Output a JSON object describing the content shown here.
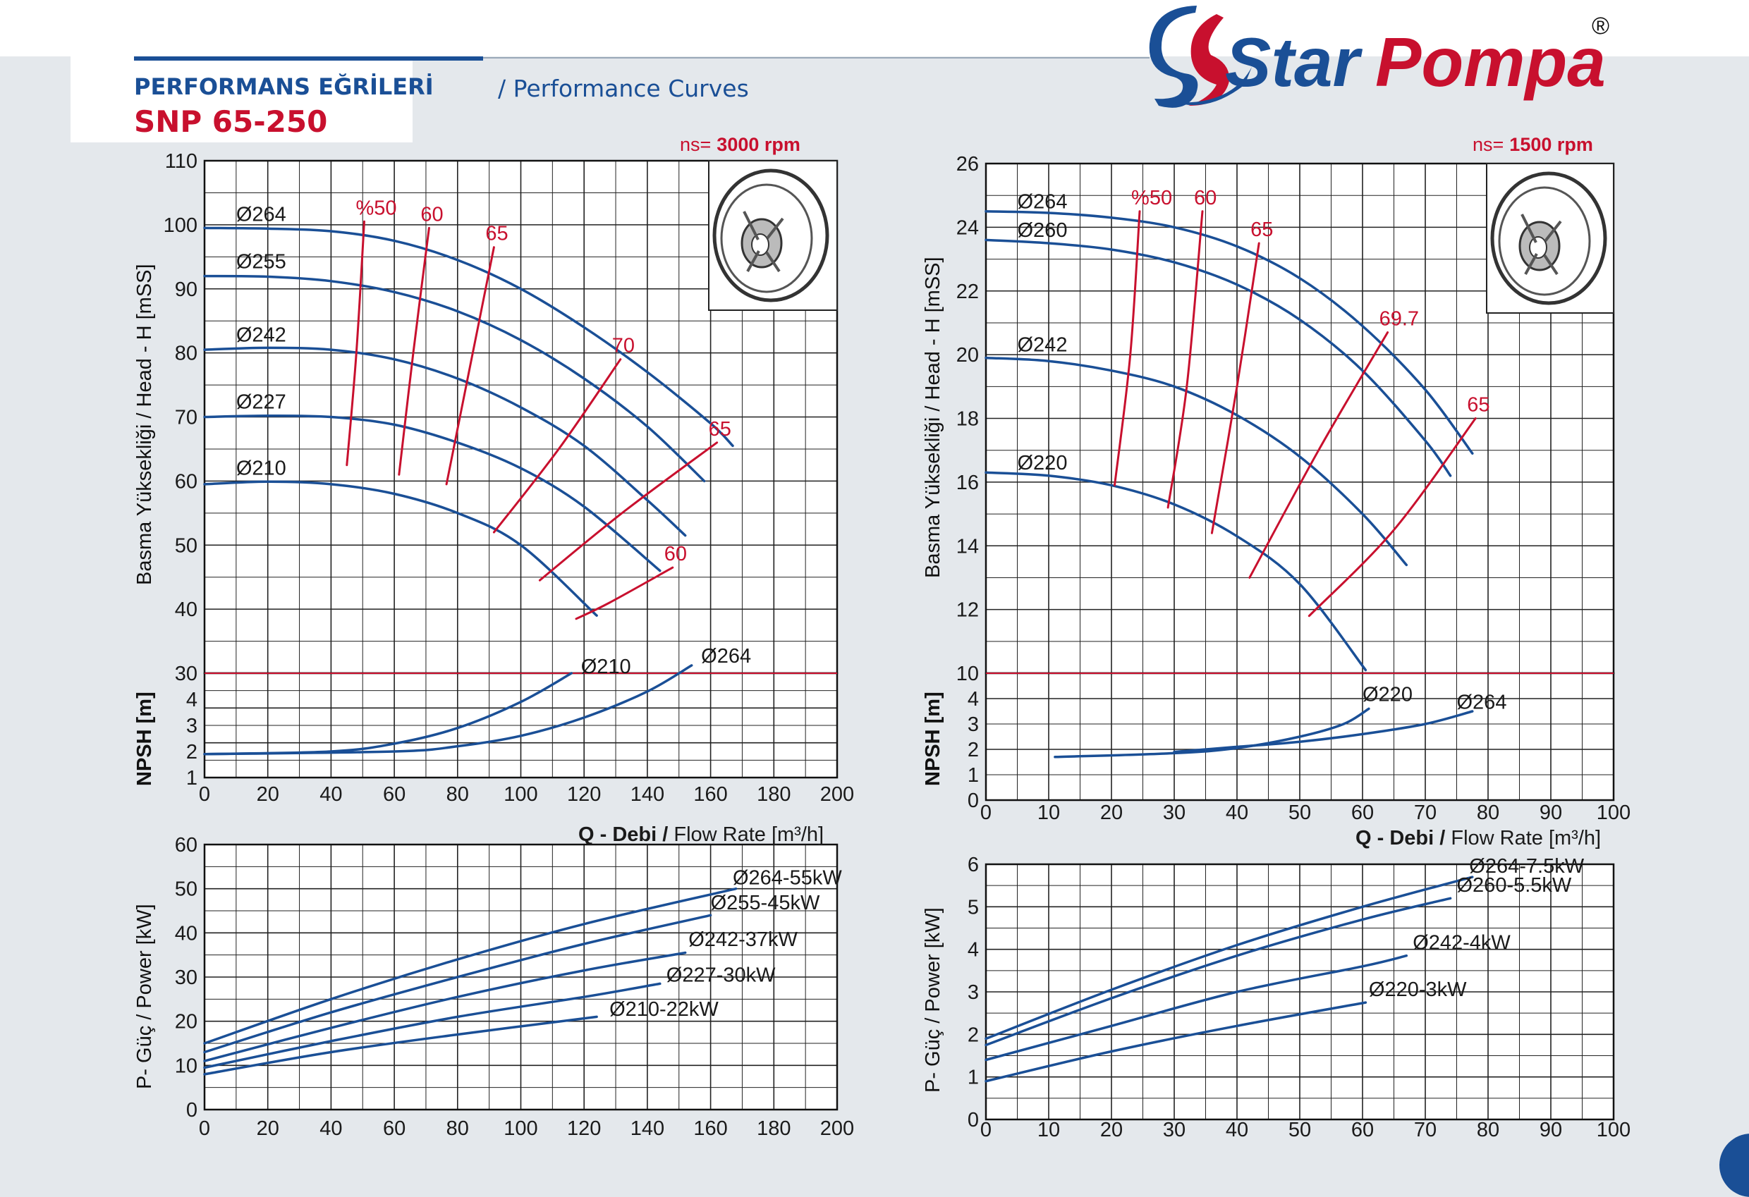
{
  "header": {
    "title": "PERFORMANS EĞRİLERİ",
    "subtitle": "/ Performance Curves",
    "model": "SNP 65-250"
  },
  "brand": {
    "name": "Star Pompa",
    "registered": "®",
    "blue": "#1a4f96",
    "red": "#c8102e"
  },
  "labels": {
    "head_y": "Basma Yüksekliği / Head - H [mSS]",
    "npsh_y": "NPSH [m]",
    "power_y": "P- Güç / Power [kW]",
    "flow_x_bold": "Q - Debi /",
    "flow_x": " Flow Rate [m³/h]"
  },
  "chart_data": [
    {
      "id": "head3000",
      "type": "line",
      "rpm_prefix": "ns=",
      "rpm": "3000 rpm",
      "xlim": [
        0,
        200
      ],
      "x_ticks": [
        0,
        20,
        40,
        60,
        80,
        100,
        120,
        140,
        160,
        180,
        200
      ],
      "ylim": [
        30,
        110
      ],
      "y_ticks": [
        30,
        40,
        50,
        60,
        70,
        80,
        90,
        100,
        110
      ],
      "series": [
        {
          "name": "Ø264",
          "x": [
            0,
            20,
            40,
            60,
            80,
            100,
            120,
            140,
            160,
            167
          ],
          "y": [
            99.5,
            99.4,
            99.0,
            97.5,
            94.5,
            90,
            84,
            77,
            69,
            65.5
          ]
        },
        {
          "name": "Ø255",
          "x": [
            0,
            20,
            40,
            60,
            80,
            100,
            120,
            140,
            158
          ],
          "y": [
            92,
            91.9,
            91.2,
            89.5,
            86.5,
            82,
            76,
            68.5,
            60
          ]
        },
        {
          "name": "Ø242",
          "x": [
            0,
            20,
            40,
            60,
            80,
            100,
            120,
            140,
            152
          ],
          "y": [
            80.5,
            80.8,
            80.5,
            79,
            76,
            71.5,
            65.5,
            57,
            51.5
          ]
        },
        {
          "name": "Ø227",
          "x": [
            0,
            20,
            40,
            60,
            80,
            100,
            120,
            144
          ],
          "y": [
            70,
            70.2,
            70,
            68.8,
            66,
            62,
            56,
            46
          ]
        },
        {
          "name": "Ø210",
          "x": [
            0,
            20,
            40,
            60,
            80,
            100,
            124
          ],
          "y": [
            59.5,
            59.9,
            59.5,
            58,
            55,
            50,
            39
          ]
        }
      ],
      "efficiency": [
        {
          "label": "%50",
          "x": [
            50.5,
            48,
            45
          ],
          "y": [
            100.5,
            80,
            62.5
          ]
        },
        {
          "label": "60",
          "x": [
            71,
            66,
            61.5
          ],
          "y": [
            99.5,
            80,
            61
          ]
        },
        {
          "label": "65",
          "x": [
            91.5,
            84,
            76.5
          ],
          "y": [
            96.5,
            78,
            59.5
          ]
        },
        {
          "label": "70",
          "x": [
            131.5,
            112,
            91.5
          ],
          "y": [
            79,
            65,
            52
          ]
        },
        {
          "label": "65",
          "x": [
            162,
            132,
            106
          ],
          "y": [
            66,
            55,
            44.5
          ]
        },
        {
          "label": "60",
          "x": [
            148,
            128,
            117.5
          ],
          "y": [
            46.5,
            41,
            38.5
          ]
        }
      ]
    },
    {
      "id": "npsh3000",
      "type": "line",
      "xlim": [
        0,
        200
      ],
      "ylim": [
        1,
        5
      ],
      "y_ticks": [
        1,
        2,
        3,
        4
      ],
      "series": [
        {
          "name": "Ø210",
          "x": [
            0,
            40,
            60,
            80,
            100,
            116
          ],
          "y": [
            1.9,
            2.0,
            2.3,
            2.9,
            3.9,
            5.0
          ]
        },
        {
          "name": "Ø264",
          "x": [
            0,
            60,
            80,
            100,
            120,
            140,
            154
          ],
          "y": [
            1.9,
            2.0,
            2.2,
            2.6,
            3.3,
            4.3,
            5.3
          ]
        }
      ]
    },
    {
      "id": "power3000",
      "type": "line",
      "xlim": [
        0,
        200
      ],
      "x_ticks": [
        0,
        20,
        40,
        60,
        80,
        100,
        120,
        140,
        160,
        180,
        200
      ],
      "ylim": [
        0,
        60
      ],
      "y_ticks": [
        0,
        10,
        20,
        30,
        40,
        50,
        60
      ],
      "series": [
        {
          "name": "Ø264-55kW",
          "x": [
            0,
            40,
            80,
            120,
            168
          ],
          "y": [
            15,
            25,
            34,
            42,
            50
          ]
        },
        {
          "name": "Ø255-45kW",
          "x": [
            0,
            40,
            80,
            120,
            160
          ],
          "y": [
            13,
            22,
            30,
            37.5,
            44
          ]
        },
        {
          "name": "Ø242-37kW",
          "x": [
            0,
            40,
            80,
            120,
            152
          ],
          "y": [
            11,
            18.5,
            25.5,
            31.5,
            35.5
          ]
        },
        {
          "name": "Ø227-30kW",
          "x": [
            0,
            40,
            80,
            120,
            144
          ],
          "y": [
            9.5,
            15.5,
            21,
            25.5,
            28.5
          ]
        },
        {
          "name": "Ø210-22kW",
          "x": [
            0,
            40,
            80,
            124
          ],
          "y": [
            8,
            13,
            17,
            21
          ]
        }
      ]
    },
    {
      "id": "head1500",
      "type": "line",
      "rpm_prefix": "ns=",
      "rpm": "1500 rpm",
      "xlim": [
        0,
        100
      ],
      "x_ticks": [
        0,
        10,
        20,
        30,
        40,
        50,
        60,
        70,
        80,
        90,
        100
      ],
      "ylim": [
        10,
        26
      ],
      "y_ticks": [
        10,
        12,
        14,
        16,
        18,
        20,
        22,
        24,
        26
      ],
      "series": [
        {
          "name": "Ø264",
          "x": [
            0,
            10,
            20,
            30,
            40,
            50,
            60,
            70,
            77.5
          ],
          "y": [
            24.5,
            24.45,
            24.3,
            24.0,
            23.4,
            22.4,
            20.9,
            18.9,
            16.9
          ]
        },
        {
          "name": "Ø260",
          "x": [
            0,
            10,
            20,
            30,
            40,
            50,
            60,
            70,
            74
          ],
          "y": [
            23.6,
            23.5,
            23.3,
            22.9,
            22.2,
            21.1,
            19.5,
            17.3,
            16.2
          ]
        },
        {
          "name": "Ø242",
          "x": [
            0,
            10,
            20,
            30,
            40,
            50,
            60,
            67
          ],
          "y": [
            19.9,
            19.8,
            19.5,
            19.0,
            18.1,
            16.8,
            15.0,
            13.4
          ]
        },
        {
          "name": "Ø220",
          "x": [
            0,
            10,
            20,
            30,
            40,
            50,
            60.5
          ],
          "y": [
            16.3,
            16.2,
            15.9,
            15.3,
            14.3,
            12.8,
            10.1
          ]
        }
      ],
      "efficiency": [
        {
          "label": "%50",
          "x": [
            24.5,
            23,
            20.5
          ],
          "y": [
            24.5,
            20,
            15.9
          ]
        },
        {
          "label": "60",
          "x": [
            34.5,
            32,
            29
          ],
          "y": [
            24.5,
            19,
            15.2
          ]
        },
        {
          "label": "65",
          "x": [
            43.5,
            40,
            36
          ],
          "y": [
            23.5,
            19,
            14.4
          ]
        },
        {
          "label": "69.7",
          "x": [
            64,
            53,
            42
          ],
          "y": [
            20.7,
            17,
            13.0
          ]
        },
        {
          "label": "65",
          "x": [
            78,
            65,
            51.5
          ],
          "y": [
            18.0,
            14.5,
            11.8
          ]
        }
      ]
    },
    {
      "id": "npsh1500",
      "type": "line",
      "xlim": [
        0,
        100
      ],
      "ylim": [
        0,
        5
      ],
      "y_ticks": [
        0,
        1,
        2,
        3,
        4
      ],
      "series": [
        {
          "name": "Ø220",
          "x": [
            11,
            30,
            40,
            50,
            57,
            61
          ],
          "y": [
            1.7,
            1.85,
            2.05,
            2.5,
            3.0,
            3.6
          ]
        },
        {
          "name": "Ø264",
          "x": [
            30,
            40,
            50,
            60,
            70,
            77.5
          ],
          "y": [
            1.9,
            2.1,
            2.3,
            2.6,
            3.0,
            3.5
          ]
        }
      ]
    },
    {
      "id": "power1500",
      "type": "line",
      "xlim": [
        0,
        100
      ],
      "x_ticks": [
        0,
        10,
        20,
        30,
        40,
        50,
        60,
        70,
        80,
        90,
        100
      ],
      "ylim": [
        0,
        6
      ],
      "y_ticks": [
        0,
        1,
        2,
        3,
        4,
        5,
        6
      ],
      "series": [
        {
          "name": "Ø264-7.5kW",
          "x": [
            0,
            20,
            40,
            60,
            77.5
          ],
          "y": [
            1.9,
            3.05,
            4.1,
            5.0,
            5.7
          ]
        },
        {
          "name": "Ø260-5.5kW",
          "x": [
            0,
            20,
            40,
            60,
            74
          ],
          "y": [
            1.75,
            2.85,
            3.85,
            4.7,
            5.2
          ]
        },
        {
          "name": "Ø242-4kW",
          "x": [
            0,
            20,
            40,
            60,
            67
          ],
          "y": [
            1.4,
            2.2,
            3.0,
            3.6,
            3.85
          ]
        },
        {
          "name": "Ø220-3kW",
          "x": [
            0,
            20,
            40,
            60.5
          ],
          "y": [
            0.9,
            1.6,
            2.2,
            2.75
          ]
        }
      ]
    }
  ]
}
